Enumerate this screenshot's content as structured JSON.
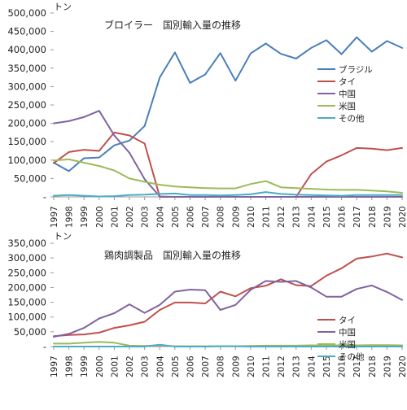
{
  "chart_data": [
    {
      "type": "line",
      "title": "ブロイラー　国別輸入量の推移",
      "unit_label": "トン",
      "xlabel": "",
      "ylabel": "",
      "ylim": [
        0,
        500000
      ],
      "ytick_step": 50000,
      "grid": false,
      "legend_position": "right",
      "x": [
        "1997",
        "1998",
        "1999",
        "2000",
        "2001",
        "2002",
        "2003",
        "2004",
        "2005",
        "2006",
        "2007",
        "2008",
        "2009",
        "2010",
        "2011",
        "2012",
        "2013",
        "2014",
        "2015",
        "2016",
        "2017",
        "2018",
        "2019",
        "2020"
      ],
      "series": [
        {
          "name": "ブラジル",
          "color": "#4a7ebb",
          "values": [
            93000,
            70000,
            105000,
            107000,
            140000,
            153000,
            193000,
            325000,
            393000,
            310000,
            333000,
            391000,
            316000,
            390000,
            417000,
            389000,
            376000,
            405000,
            426000,
            388000,
            434000,
            395000,
            424000,
            405000
          ]
        },
        {
          "name": "タイ",
          "color": "#c0504d",
          "values": [
            92000,
            122000,
            128000,
            125000,
            175000,
            167000,
            145000,
            0,
            0,
            0,
            0,
            0,
            0,
            0,
            0,
            0,
            0,
            62000,
            96000,
            113000,
            133000,
            131000,
            127000,
            133000
          ]
        },
        {
          "name": "中国",
          "color": "#8064a2",
          "values": [
            200000,
            206000,
            217000,
            234000,
            167000,
            120000,
            48000,
            1000,
            0,
            0,
            0,
            0,
            0,
            0,
            0,
            0,
            0,
            0,
            0,
            0,
            0,
            0,
            0,
            0
          ]
        },
        {
          "name": "米国",
          "color": "#9bbb59",
          "values": [
            99000,
            102000,
            93000,
            84000,
            72000,
            50000,
            41000,
            33000,
            28000,
            26000,
            24000,
            23000,
            23000,
            35000,
            43000,
            26000,
            24000,
            22000,
            20000,
            19000,
            19000,
            17000,
            15000,
            11000
          ]
        },
        {
          "name": "その他",
          "color": "#4bacc6",
          "values": [
            3000,
            5000,
            3000,
            1000,
            2000,
            5000,
            6000,
            8000,
            9000,
            5000,
            5000,
            4000,
            5000,
            7000,
            13000,
            8000,
            6000,
            5000,
            4000,
            3000,
            5000,
            5000,
            5000,
            5000
          ]
        }
      ]
    },
    {
      "type": "line",
      "title": "鶏肉調製品　国別輸入量の推移",
      "unit_label": "トン",
      "xlabel": "",
      "ylabel": "",
      "ylim": [
        0,
        350000
      ],
      "ytick_step": 50000,
      "grid": false,
      "legend_position": "right",
      "x": [
        "1997",
        "1998",
        "1999",
        "2000",
        "2001",
        "2002",
        "2003",
        "2004",
        "2005",
        "2006",
        "2007",
        "2008",
        "2009",
        "2010",
        "2011",
        "2012",
        "2013",
        "2014",
        "2015",
        "2016",
        "2017",
        "2018",
        "2019",
        "2020"
      ],
      "series": [
        {
          "name": "タイ",
          "color": "#c0504d",
          "values": [
            35000,
            39000,
            41000,
            47000,
            63000,
            72000,
            84000,
            124000,
            149000,
            149000,
            146000,
            186000,
            170000,
            198000,
            206000,
            228000,
            208000,
            205000,
            240000,
            265000,
            298000,
            305000,
            315000,
            302000
          ]
        },
        {
          "name": "中国",
          "color": "#8064a2",
          "values": [
            33000,
            43000,
            63000,
            95000,
            113000,
            143000,
            114000,
            141000,
            186000,
            193000,
            191000,
            124000,
            141000,
            192000,
            222000,
            219000,
            222000,
            200000,
            169000,
            169000,
            195000,
            207000,
            185000,
            158000
          ]
        },
        {
          "name": "米国",
          "color": "#9bbb59",
          "values": [
            10000,
            10000,
            13000,
            16000,
            13000,
            3000,
            2000,
            4000,
            1000,
            1000,
            1000,
            1000,
            1000,
            2000,
            3000,
            3000,
            3000,
            4000,
            4000,
            4000,
            4000,
            5000,
            5000,
            4000
          ]
        },
        {
          "name": "その他",
          "color": "#4bacc6",
          "values": [
            0,
            0,
            0,
            0,
            0,
            0,
            0,
            6000,
            0,
            0,
            0,
            1000,
            1000,
            0,
            0,
            0,
            0,
            0,
            0,
            0,
            0,
            0,
            0,
            0
          ]
        }
      ]
    }
  ]
}
